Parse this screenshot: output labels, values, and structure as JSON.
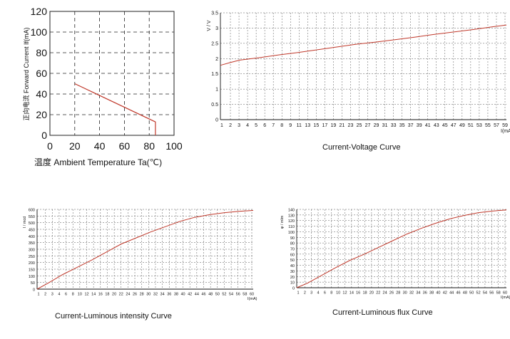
{
  "chart_data": [
    {
      "type": "line",
      "title": "",
      "xlabel": "温度 Ambient Temperature Ta(℃)",
      "ylabel": "正向电流 Forward Current If(mA)",
      "xlim": [
        0,
        100
      ],
      "ylim": [
        0,
        120
      ],
      "xticks": [
        "0",
        "20",
        "40",
        "60",
        "80",
        "100"
      ],
      "yticks": [
        "0",
        "20",
        "40",
        "60",
        "80",
        "100",
        "120"
      ],
      "grid": true,
      "series": [
        {
          "x": [
            20,
            85,
            85
          ],
          "y": [
            50,
            13,
            0
          ],
          "color": "#c0392b"
        }
      ]
    },
    {
      "type": "line",
      "title": "Current-Voltage Curve",
      "xlabel": "I(mA)",
      "ylabel": "V / V",
      "xlim": [
        1,
        60
      ],
      "ylim": [
        0,
        3.5
      ],
      "xticks": [
        "1",
        "2",
        "3",
        "4",
        "5",
        "6",
        "7",
        "8",
        "9",
        "11",
        "13",
        "15",
        "17",
        "19",
        "21",
        "23",
        "25",
        "27",
        "29",
        "31",
        "33",
        "35",
        "37",
        "39",
        "41",
        "43",
        "45",
        "47",
        "49",
        "51",
        "53",
        "55",
        "57",
        "59"
      ],
      "yticks": [
        "0",
        "0.5",
        "1",
        "1.5",
        "2",
        "2.5",
        "3",
        "3.5"
      ],
      "grid": true,
      "series": [
        {
          "x": [
            1,
            3,
            5,
            9,
            13,
            17,
            21,
            25,
            29,
            33,
            37,
            41,
            45,
            49,
            53,
            57,
            60
          ],
          "y": [
            1.78,
            1.87,
            1.95,
            2.03,
            2.12,
            2.2,
            2.29,
            2.38,
            2.47,
            2.54,
            2.62,
            2.7,
            2.79,
            2.87,
            2.95,
            3.04,
            3.1
          ],
          "color": "#c0392b"
        }
      ]
    },
    {
      "type": "line",
      "title": "Current-Luminous intensity Curve",
      "xlabel": "I(mA)",
      "ylabel": "I / mcd",
      "xlim": [
        1,
        60
      ],
      "ylim": [
        0,
        600
      ],
      "xticks": [
        "1",
        "2",
        "3",
        "4",
        "6",
        "8",
        "10",
        "12",
        "14",
        "16",
        "18",
        "20",
        "22",
        "24",
        "26",
        "28",
        "30",
        "32",
        "34",
        "36",
        "38",
        "40",
        "42",
        "44",
        "46",
        "48",
        "50",
        "52",
        "54",
        "56",
        "58",
        "60"
      ],
      "yticks": [
        "0",
        "50",
        "100",
        "150",
        "200",
        "250",
        "300",
        "350",
        "400",
        "450",
        "500",
        "550",
        "600"
      ],
      "grid": true,
      "series": [
        {
          "x": [
            1,
            4,
            8,
            12,
            16,
            20,
            24,
            28,
            32,
            36,
            40,
            44,
            48,
            52,
            56,
            60
          ],
          "y": [
            0,
            45,
            110,
            165,
            220,
            280,
            340,
            385,
            430,
            470,
            510,
            540,
            560,
            575,
            585,
            592
          ],
          "color": "#c0392b"
        }
      ]
    },
    {
      "type": "line",
      "title": "Current-Luminous flux Curve",
      "xlabel": "I(mA)",
      "ylabel": "φ / mlm",
      "xlim": [
        1,
        60
      ],
      "ylim": [
        0,
        140
      ],
      "xticks": [
        "1",
        "2",
        "3",
        "4",
        "6",
        "8",
        "10",
        "12",
        "14",
        "16",
        "18",
        "20",
        "22",
        "24",
        "26",
        "28",
        "30",
        "32",
        "34",
        "36",
        "38",
        "40",
        "42",
        "44",
        "46",
        "48",
        "50",
        "52",
        "54",
        "56",
        "58",
        "60"
      ],
      "yticks": [
        "0",
        "10",
        "20",
        "30",
        "40",
        "50",
        "60",
        "70",
        "80",
        "90",
        "100",
        "110",
        "120",
        "130",
        "140"
      ],
      "grid": true,
      "series": [
        {
          "x": [
            1,
            4,
            8,
            12,
            16,
            20,
            24,
            28,
            32,
            36,
            40,
            44,
            48,
            52,
            56,
            60
          ],
          "y": [
            0,
            8,
            22,
            36,
            49,
            60,
            72,
            84,
            96,
            106,
            115,
            123,
            129,
            134,
            137,
            139
          ],
          "color": "#c0392b"
        }
      ]
    }
  ]
}
